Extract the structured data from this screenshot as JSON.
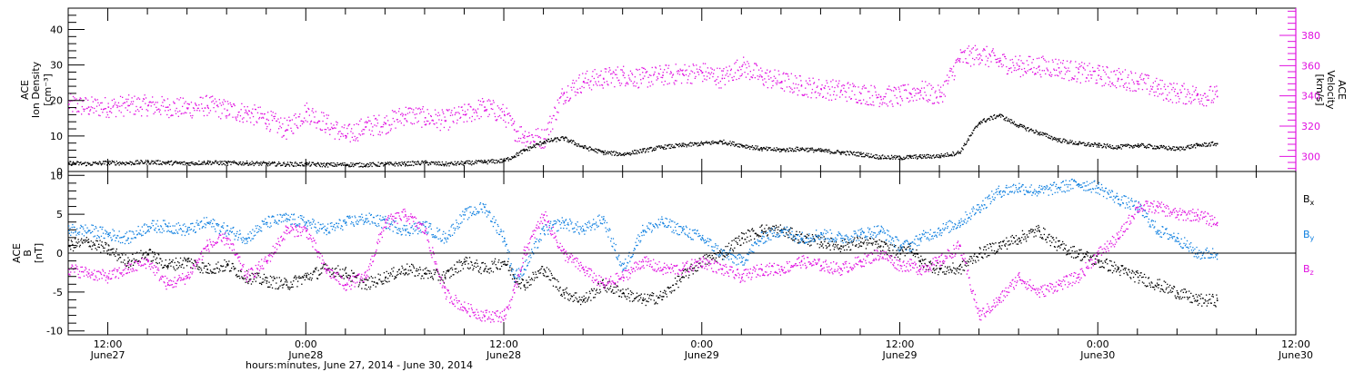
{
  "chart_data": [
    {
      "type": "scatter",
      "panel": "top",
      "title": "",
      "left_axis": {
        "label_lines": [
          "ACE",
          "Ion Density",
          "[cm⁻³]"
        ],
        "ylim": [
          0,
          46
        ],
        "ticks": [
          0,
          10,
          20,
          30,
          40
        ],
        "tick_labels": [
          "0",
          "10",
          "20",
          "30",
          "40"
        ],
        "color": "#000000"
      },
      "right_axis": {
        "label_lines": [
          "ACE",
          "Velocity",
          "[km/s]"
        ],
        "ylim": [
          290,
          398
        ],
        "ticks": [
          300,
          320,
          340,
          360,
          380
        ],
        "tick_labels": [
          "300",
          "320",
          "340",
          "360",
          "380"
        ],
        "color": "#e010e0"
      },
      "series": [
        {
          "axis": "left",
          "color": "#000000",
          "x_hours": [
            0,
            2,
            4,
            6,
            8,
            10,
            12,
            14,
            16,
            18,
            20,
            22,
            24,
            26,
            28,
            30,
            32,
            34,
            36,
            38,
            40,
            42,
            44,
            45,
            46,
            48,
            50,
            52,
            54,
            56,
            58,
            60,
            62,
            64,
            66,
            68,
            70,
            72,
            74,
            76,
            78,
            80,
            82,
            84,
            85,
            86,
            88,
            90,
            92,
            94,
            96,
            98,
            100,
            102,
            104,
            106,
            108,
            110,
            112,
            114,
            116
          ],
          "values": [
            2.5,
            2.3,
            2.6,
            2.5,
            2.8,
            2.6,
            2.4,
            2.7,
            2.5,
            2.5,
            2.3,
            2.2,
            2.2,
            2.0,
            2.1,
            2.0,
            2.2,
            2.3,
            2.6,
            2.2,
            2.5,
            2.8,
            3.2,
            4.5,
            6.0,
            8.5,
            9.5,
            7.0,
            5.5,
            5.0,
            6.0,
            7.0,
            7.5,
            8.0,
            8.5,
            7.5,
            6.5,
            6.2,
            6.5,
            6.0,
            5.5,
            5.0,
            4.2,
            4.0,
            4.2,
            4.3,
            4.5,
            5.5,
            14,
            16,
            13,
            11,
            9,
            8,
            7.5,
            7.0,
            7.5,
            7.0,
            6.5,
            7.5,
            8.0
          ]
        },
        {
          "axis": "right",
          "color": "#e010e0",
          "x_hours": [
            0,
            2,
            4,
            6,
            8,
            10,
            12,
            14,
            16,
            18,
            20,
            22,
            24,
            26,
            28,
            30,
            32,
            34,
            36,
            38,
            40,
            42,
            44,
            45,
            46,
            48,
            50,
            52,
            54,
            56,
            58,
            60,
            62,
            64,
            66,
            68,
            70,
            72,
            74,
            76,
            78,
            80,
            82,
            84,
            85,
            86,
            88,
            90,
            92,
            94,
            96,
            98,
            100,
            102,
            104,
            106,
            108,
            110,
            112,
            114,
            116
          ],
          "values": [
            335,
            333,
            333,
            334,
            334,
            333,
            332,
            334,
            331,
            329,
            325,
            318,
            330,
            322,
            314,
            320,
            322,
            328,
            326,
            324,
            328,
            333,
            328,
            318,
            314,
            312,
            342,
            350,
            352,
            354,
            352,
            354,
            355,
            356,
            352,
            360,
            353,
            350,
            347,
            345,
            344,
            342,
            340,
            340,
            342,
            344,
            340,
            365,
            368,
            363,
            360,
            360,
            359,
            356,
            354,
            352,
            350,
            345,
            342,
            341,
            340
          ]
        }
      ]
    },
    {
      "type": "scatter",
      "panel": "bottom",
      "title": "",
      "left_axis": {
        "label_lines": [
          "ACE",
          "B",
          "[nT]"
        ],
        "ylim": [
          -10.5,
          10.5
        ],
        "ticks": [
          -10,
          -5,
          0,
          5,
          10
        ],
        "tick_labels": [
          "-10",
          "-5",
          "0",
          "5",
          "10"
        ],
        "color": "#000000"
      },
      "zero_line": true,
      "series": [
        {
          "name_base": "B",
          "name_sub": "x",
          "color": "#000000",
          "x_hours": [
            0,
            2,
            4,
            6,
            8,
            10,
            12,
            14,
            16,
            18,
            20,
            22,
            24,
            26,
            28,
            30,
            32,
            34,
            36,
            38,
            40,
            42,
            44,
            45,
            46,
            48,
            50,
            52,
            54,
            56,
            58,
            60,
            62,
            64,
            66,
            68,
            70,
            72,
            74,
            76,
            78,
            80,
            82,
            84,
            85,
            86,
            88,
            90,
            92,
            94,
            96,
            98,
            100,
            102,
            104,
            106,
            108,
            110,
            112,
            114,
            116
          ],
          "values": [
            1,
            1.5,
            0.5,
            -1,
            0,
            -1.5,
            -1,
            -2,
            -1.5,
            -3,
            -3.5,
            -4,
            -3,
            -2,
            -2.5,
            -4,
            -3,
            -2,
            -2.5,
            -3,
            -1,
            -2,
            -1,
            -3,
            -4,
            -2,
            -5,
            -6,
            -4,
            -5,
            -6,
            -5.5,
            -3,
            -1,
            0,
            2,
            3,
            3,
            2,
            1.5,
            1,
            1.5,
            1,
            0,
            1,
            -1,
            -2,
            -2,
            0,
            1,
            2,
            3,
            1,
            0,
            -1,
            -2,
            -3,
            -4,
            -5,
            -6,
            -6
          ]
        },
        {
          "name_base": "B",
          "name_sub": "y",
          "color": "#1080e0",
          "x_hours": [
            0,
            2,
            4,
            6,
            8,
            10,
            12,
            14,
            16,
            18,
            20,
            22,
            24,
            26,
            28,
            30,
            32,
            34,
            36,
            38,
            40,
            42,
            44,
            45,
            46,
            48,
            50,
            52,
            54,
            56,
            58,
            60,
            62,
            64,
            66,
            68,
            70,
            72,
            74,
            76,
            78,
            80,
            82,
            84,
            85,
            86,
            88,
            90,
            92,
            94,
            96,
            98,
            100,
            102,
            104,
            106,
            108,
            110,
            112,
            114,
            116
          ],
          "values": [
            3,
            3,
            2.5,
            2,
            3.5,
            3.5,
            3,
            4,
            3,
            2,
            4,
            4.5,
            4,
            3,
            4,
            4.5,
            4,
            3,
            3.5,
            2,
            5,
            6,
            2,
            -3,
            -2,
            3,
            4,
            3,
            4.5,
            -2,
            3,
            4,
            3,
            2,
            0,
            -1,
            2,
            3,
            2,
            2.5,
            2,
            2.5,
            3,
            1,
            1,
            2,
            3,
            4,
            6,
            8,
            8.5,
            8,
            8.5,
            9,
            8.5,
            7,
            6,
            3,
            2,
            0,
            0
          ]
        },
        {
          "name_base": "B",
          "name_sub": "z",
          "color": "#e010e0",
          "x_hours": [
            0,
            2,
            4,
            6,
            8,
            10,
            12,
            14,
            16,
            18,
            20,
            22,
            24,
            26,
            28,
            30,
            32,
            34,
            36,
            38,
            40,
            42,
            44,
            45,
            46,
            48,
            50,
            52,
            54,
            56,
            58,
            60,
            62,
            64,
            66,
            68,
            70,
            72,
            74,
            76,
            78,
            80,
            82,
            84,
            85,
            86,
            88,
            90,
            92,
            94,
            96,
            98,
            100,
            102,
            104,
            106,
            108,
            110,
            112,
            114,
            116
          ],
          "values": [
            -2,
            -2.5,
            -3,
            -2,
            -1,
            -4,
            -3,
            1,
            2,
            -3,
            -1,
            3,
            3,
            -2,
            -4,
            -3,
            4,
            5,
            3,
            -5,
            -7,
            -8,
            -8,
            -5,
            0,
            5,
            0,
            -2,
            -4,
            -3,
            -1,
            -2,
            -2,
            -1,
            -2,
            -3,
            -2,
            -2,
            -1,
            -1.5,
            -2,
            -1,
            0,
            -1.5,
            -1.5,
            -2,
            -1,
            1,
            -8,
            -6,
            -3,
            -5,
            -4,
            -3,
            0,
            2,
            6,
            6,
            5,
            5,
            4
          ]
        }
      ]
    }
  ],
  "x_axis": {
    "xlim_hours": [
      0,
      124
    ],
    "data_start_hours": 0,
    "data_end_hours": 116,
    "ticks_hours": [
      4,
      24,
      44,
      64,
      84,
      104,
      124
    ],
    "tick_time_labels": [
      "12:00",
      "0:00",
      "12:00",
      "0:00",
      "12:00",
      "0:00",
      "12:00"
    ],
    "tick_date_labels": [
      "June27",
      "June28",
      "June28",
      "June29",
      "June29",
      "June30",
      "June30"
    ],
    "label": "hours:minutes, June 27, 2014 - June 30, 2014"
  }
}
